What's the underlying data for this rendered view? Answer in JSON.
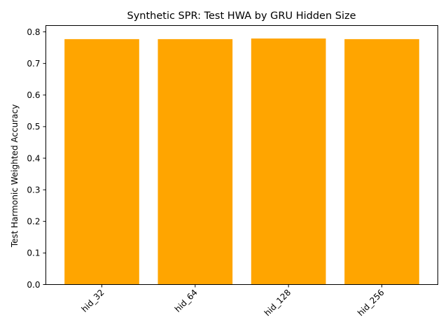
{
  "chart_data": {
    "type": "bar",
    "title": "Synthetic SPR: Test HWA by GRU Hidden Size",
    "xlabel": "",
    "ylabel": "Test Harmonic Weighted Accuracy",
    "categories": [
      "hid_32",
      "hid_64",
      "hid_128",
      "hid_256"
    ],
    "values": [
      0.777,
      0.777,
      0.779,
      0.777
    ],
    "ylim": [
      0,
      0.82
    ],
    "yticks": [
      0.0,
      0.1,
      0.2,
      0.3,
      0.4,
      0.5,
      0.6,
      0.7,
      0.8
    ],
    "ytick_labels": [
      "0.0",
      "0.1",
      "0.2",
      "0.3",
      "0.4",
      "0.5",
      "0.6",
      "0.7",
      "0.8"
    ],
    "xtick_rotation_deg": 45,
    "bar_color": "#ffa500",
    "grid": false,
    "legend": "none"
  }
}
